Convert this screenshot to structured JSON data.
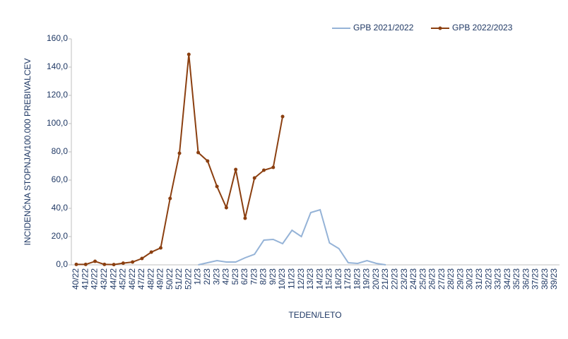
{
  "chart_data": {
    "type": "line",
    "y_label": "INCIDENČNA  STOPNJA/100.000  PREBIVALCEV",
    "x_label": "TEDEN/LETO",
    "categories": [
      "40/22",
      "41/22",
      "42/22",
      "43/22",
      "44/22",
      "45/22",
      "46/22",
      "47/22",
      "48/22",
      "49/22",
      "50/22",
      "51/22",
      "52/22",
      "1/23",
      "2/23",
      "3/23",
      "4/23",
      "5/23",
      "6/23",
      "7/23",
      "8/23",
      "9/23",
      "10/23",
      "11/23",
      "12/23",
      "13/23",
      "14/23",
      "15/23",
      "16/23",
      "17/23",
      "18/23",
      "19/23",
      "20/23",
      "21/23",
      "22/23",
      "23/23",
      "24/23",
      "25/23",
      "26/23",
      "27/23",
      "28/23",
      "29/23",
      "30/23",
      "31/23",
      "32/23",
      "33/23",
      "34/23",
      "35/23",
      "36/23",
      "37/23",
      "38/23",
      "39/23"
    ],
    "series": [
      {
        "name": "GPB 2021/2022",
        "color": "#95b3d7",
        "marker": false,
        "values": [
          null,
          null,
          null,
          null,
          null,
          null,
          null,
          null,
          null,
          null,
          null,
          null,
          null,
          0,
          1.5,
          3,
          2,
          2,
          5,
          7.5,
          17.5,
          18,
          15,
          24.5,
          20,
          37,
          39,
          15.5,
          11.5,
          1.5,
          1,
          3,
          1,
          0,
          null,
          null,
          null,
          null,
          null,
          null,
          null,
          null,
          null,
          null,
          null,
          null,
          null,
          null,
          null,
          null,
          null,
          null
        ]
      },
      {
        "name": "GPB 2022/2023",
        "color": "#8b3f10",
        "marker": true,
        "values": [
          0.3,
          0.3,
          2.5,
          0.3,
          0.2,
          1.2,
          2,
          4.5,
          9,
          12,
          47,
          79,
          149,
          79.5,
          73.5,
          55.5,
          40.5,
          67.5,
          33,
          61.5,
          67,
          69,
          105,
          null,
          null,
          null,
          null,
          null,
          null,
          null,
          null,
          null,
          null,
          null,
          null,
          null,
          null,
          null,
          null,
          null,
          null,
          null,
          null,
          null,
          null,
          null,
          null,
          null,
          null,
          null,
          null,
          null
        ]
      }
    ],
    "ylim": [
      0,
      160
    ],
    "yticks": [
      {
        "value": 0,
        "label": "0,0"
      },
      {
        "value": 20,
        "label": "20,0"
      },
      {
        "value": 40,
        "label": "40,0"
      },
      {
        "value": 60,
        "label": "60,0"
      },
      {
        "value": 80,
        "label": "80,0"
      },
      {
        "value": 100,
        "label": "100,0"
      },
      {
        "value": 120,
        "label": "120,0"
      },
      {
        "value": 140,
        "label": "140,0"
      },
      {
        "value": 160,
        "label": "160,0"
      }
    ],
    "grid": false,
    "legend": "top"
  }
}
